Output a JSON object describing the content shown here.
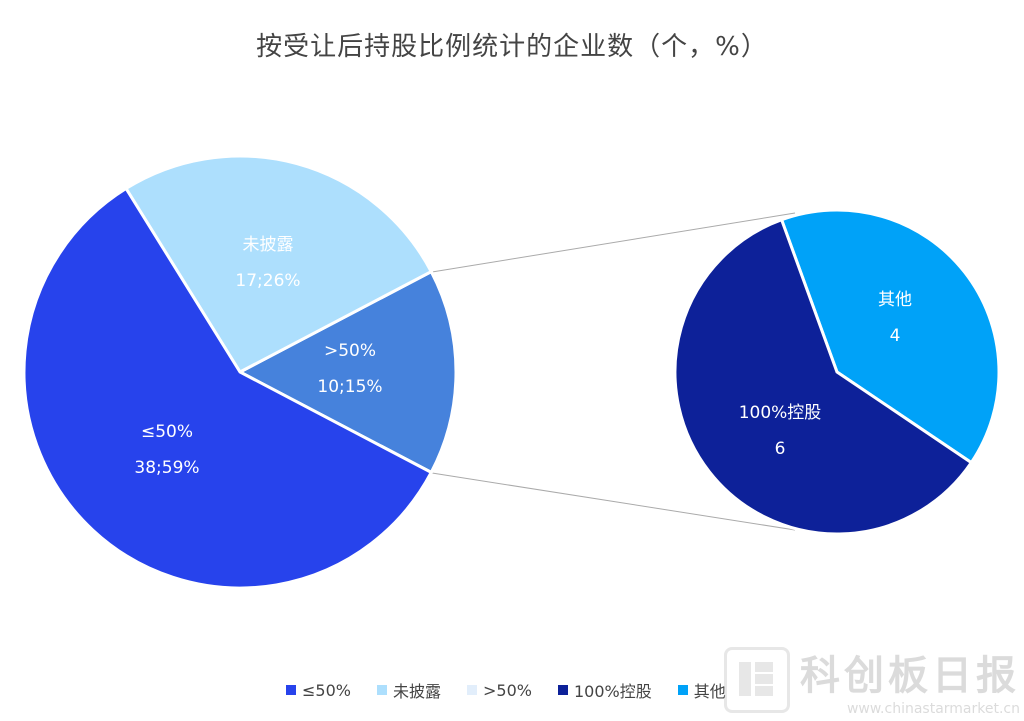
{
  "chart_data": {
    "type": "pie",
    "title": "按受让后持股比例统计的企业数（个，%）",
    "main_pie": [
      {
        "name": "≤50%",
        "value": 38,
        "percent": "59%",
        "label": "38;59%",
        "color": "#2743EC"
      },
      {
        "name": "未披露",
        "value": 17,
        "percent": "26%",
        "label": "17;26%",
        "color": "#ADDFFD"
      },
      {
        "name": ">50%",
        "value": 10,
        "percent": "15%",
        "label": "10;15%",
        "color": "#4682DC"
      }
    ],
    "sub_pie": {
      "parent": ">50%",
      "slices": [
        {
          "name": "其他",
          "value": 4,
          "label": "4",
          "color": "#00A2F8"
        },
        {
          "name": "100%控股",
          "value": 6,
          "label": "6",
          "color": "#0D2199"
        }
      ]
    },
    "legend": [
      {
        "name": "≤50%",
        "color": "#2743EC"
      },
      {
        "name": "未披露",
        "color": "#ADDFFD"
      },
      {
        "name": ">50%",
        "color": "#E2EEFB"
      },
      {
        "name": "100%控股",
        "color": "#0D2199"
      },
      {
        "name": "其他",
        "color": "#00A2F8"
      }
    ]
  },
  "watermark": {
    "name": "科创板日报",
    "url": "www.chinastarmarket.cn"
  }
}
